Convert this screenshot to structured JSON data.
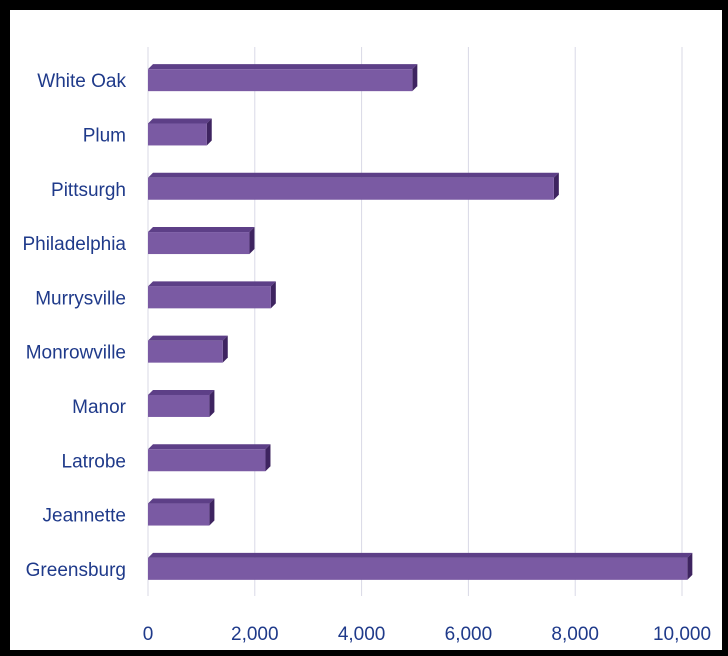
{
  "chart_data": {
    "type": "bar",
    "orientation": "horizontal",
    "style": "3d",
    "title": "",
    "xlabel": "",
    "ylabel": "",
    "categories": [
      "White Oak",
      "Plum",
      "Pittsurgh",
      "Philadelphia",
      "Murrysville",
      "Monrowville",
      "Manor",
      "Latrobe",
      "Jeannette",
      "Greensburg"
    ],
    "values": [
      4950,
      1100,
      7600,
      1900,
      2300,
      1400,
      1150,
      2200,
      1150,
      10100
    ],
    "xlim": [
      0,
      10000
    ],
    "xticks": [
      0,
      2000,
      4000,
      6000,
      8000,
      10000
    ],
    "xtick_labels": [
      "0",
      "2,000",
      "4,000",
      "6,000",
      "8,000",
      "10,000"
    ],
    "grid": "vertical",
    "legend": "none",
    "bar_color": "#7a5aa3",
    "bar_top_color": "#5d3f87",
    "bar_side_color": "#3e2460",
    "grid_color": "#d9d9e6",
    "frame_color": "#000000"
  }
}
